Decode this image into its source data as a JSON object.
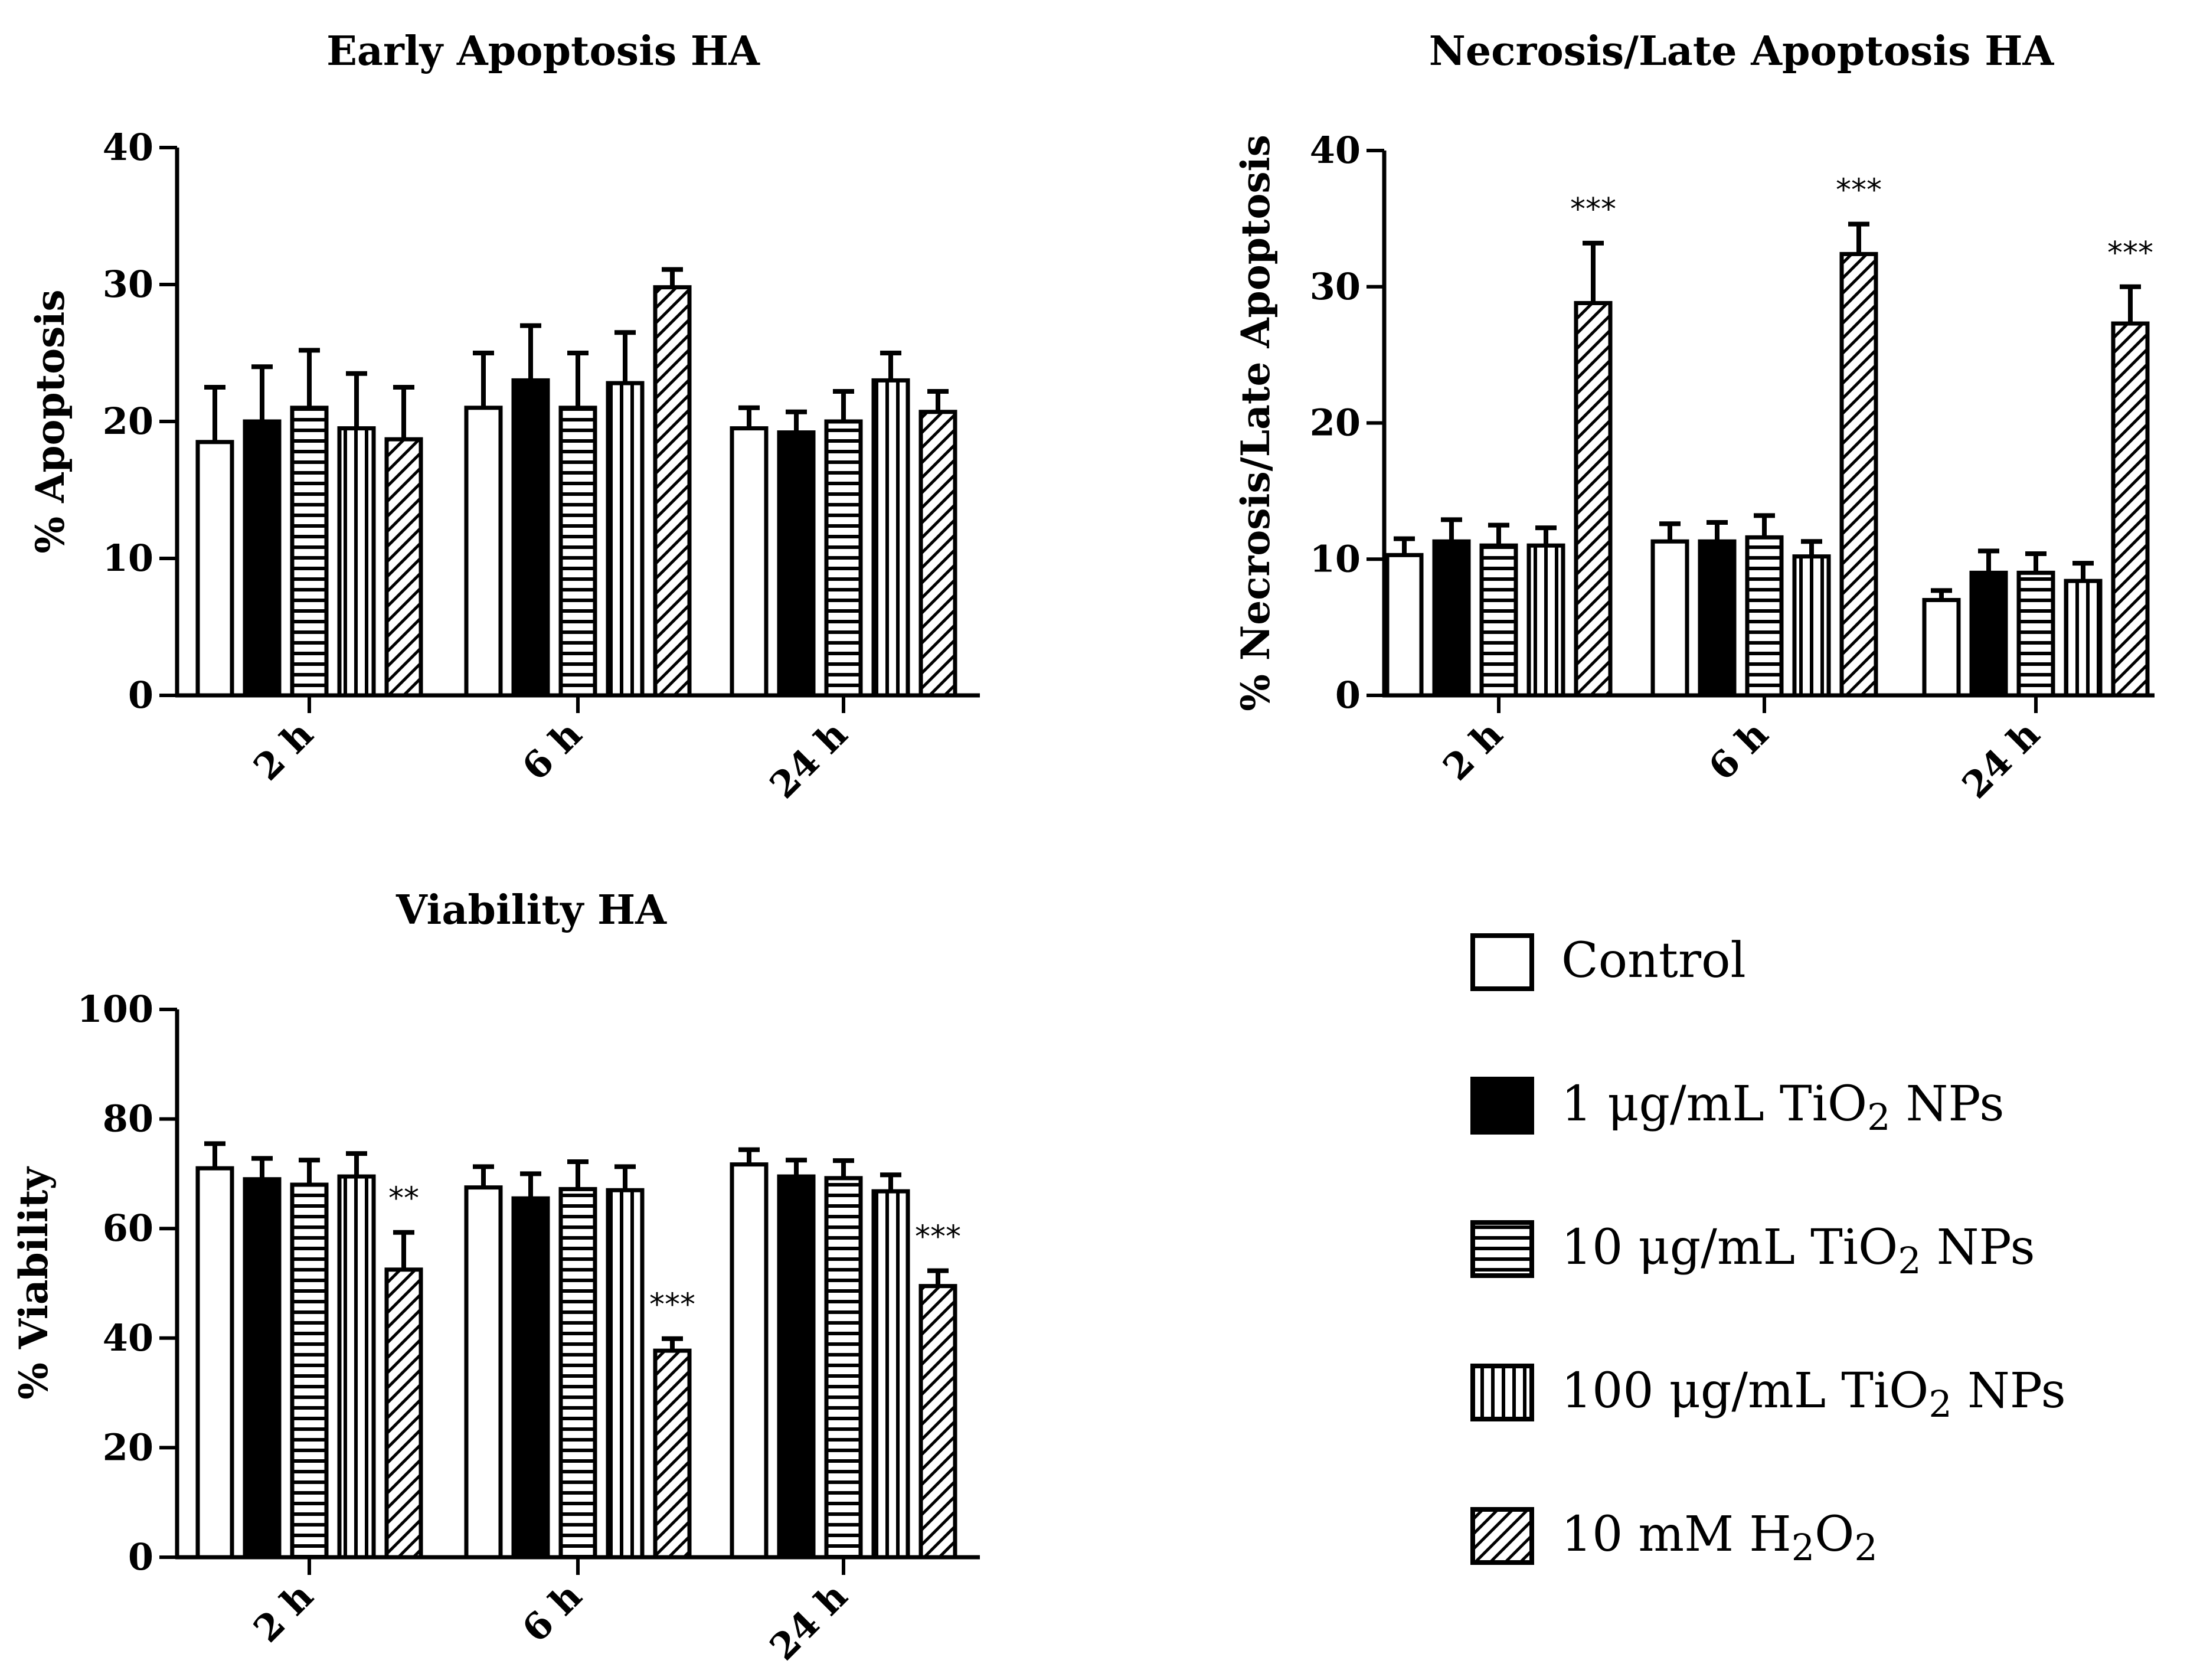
{
  "chart_data": [
    {
      "id": "early",
      "type": "bar",
      "title": "Early Apoptosis HA",
      "ylabel": "% Apoptosis",
      "xlabel": "",
      "ylim": [
        0,
        40
      ],
      "yticks": [
        0,
        10,
        20,
        30,
        40
      ],
      "categories": [
        "2 h",
        "6 h",
        "24 h"
      ],
      "series": [
        {
          "name": "Control",
          "values": [
            18.5,
            21,
            19.5
          ],
          "errors": [
            4,
            4,
            1.5
          ]
        },
        {
          "name": "1 μg/mL TiO2 NPs",
          "values": [
            20,
            23,
            19.2
          ],
          "errors": [
            4,
            4,
            1.5
          ]
        },
        {
          "name": "10 μg/mL TiO2 NPs",
          "values": [
            21,
            21,
            20
          ],
          "errors": [
            4.2,
            4,
            2.2
          ]
        },
        {
          "name": "100 μg/mL TiO2 NPs",
          "values": [
            19.5,
            22.8,
            23
          ],
          "errors": [
            4,
            3.7,
            2
          ]
        },
        {
          "name": "10 mM H2O2",
          "values": [
            18.7,
            29.8,
            20.7
          ],
          "errors": [
            3.8,
            1.3,
            1.5
          ]
        }
      ],
      "annotations": []
    },
    {
      "id": "necrosis",
      "type": "bar",
      "title": "Necrosis/Late Apoptosis HA",
      "ylabel": "% Necrosis/Late Apoptosis",
      "xlabel": "",
      "ylim": [
        0,
        40
      ],
      "yticks": [
        0,
        10,
        20,
        30,
        40
      ],
      "categories": [
        "2 h",
        "6 h",
        "24 h"
      ],
      "series": [
        {
          "name": "Control",
          "values": [
            10.3,
            11.3,
            7
          ],
          "errors": [
            1.2,
            1.3,
            0.7
          ]
        },
        {
          "name": "1 μg/mL TiO2 NPs",
          "values": [
            11.3,
            11.3,
            9
          ],
          "errors": [
            1.6,
            1.4,
            1.6
          ]
        },
        {
          "name": "10 μg/mL TiO2 NPs",
          "values": [
            11,
            11.6,
            9
          ],
          "errors": [
            1.5,
            1.6,
            1.4
          ]
        },
        {
          "name": "100 μg/mL TiO2 NPs",
          "values": [
            11,
            10.2,
            8.4
          ],
          "errors": [
            1.3,
            1.1,
            1.3
          ]
        },
        {
          "name": "10 mM H2O2",
          "values": [
            28.8,
            32.4,
            27.3
          ],
          "errors": [
            4.4,
            2.2,
            2.7
          ]
        }
      ],
      "annotations": [
        {
          "category": "2 h",
          "series": "10 mM H2O2",
          "text": "***"
        },
        {
          "category": "6 h",
          "series": "10 mM H2O2",
          "text": "***"
        },
        {
          "category": "24 h",
          "series": "10 mM H2O2",
          "text": "***"
        }
      ]
    },
    {
      "id": "viability",
      "type": "bar",
      "title": "Viability HA",
      "ylabel": "% Viability",
      "xlabel": "",
      "ylim": [
        0,
        100
      ],
      "yticks": [
        0,
        20,
        40,
        60,
        80,
        100
      ],
      "categories": [
        "2 h",
        "6 h",
        "24 h"
      ],
      "series": [
        {
          "name": "Control",
          "values": [
            71,
            67.5,
            71.7
          ],
          "errors": [
            4.5,
            3.8,
            2.7
          ]
        },
        {
          "name": "1 μg/mL TiO2 NPs",
          "values": [
            69,
            65.5,
            69.5
          ],
          "errors": [
            3.8,
            4.5,
            3
          ]
        },
        {
          "name": "10 μg/mL TiO2 NPs",
          "values": [
            68,
            67.2,
            69.2
          ],
          "errors": [
            4.5,
            5,
            3.2
          ]
        },
        {
          "name": "100 μg/mL TiO2 NPs",
          "values": [
            69.5,
            67,
            66.8
          ],
          "errors": [
            4.2,
            4.3,
            3
          ]
        },
        {
          "name": "10 mM H2O2",
          "values": [
            52.5,
            37.7,
            49.5
          ],
          "errors": [
            6.8,
            2.2,
            2.8
          ]
        }
      ],
      "annotations": [
        {
          "category": "2 h",
          "series": "10 mM H2O2",
          "text": "**"
        },
        {
          "category": "6 h",
          "series": "10 mM H2O2",
          "text": "***"
        },
        {
          "category": "24 h",
          "series": "10 mM H2O2",
          "text": "***"
        }
      ]
    }
  ],
  "legend": [
    {
      "key": "control",
      "label": "Control",
      "pattern": "white",
      "parts": [
        {
          "t": "Control"
        }
      ]
    },
    {
      "key": "tio2-1",
      "label": "1 μg/mL TiO2 NPs",
      "pattern": "black",
      "parts": [
        {
          "t": "1 μg/mL TiO"
        },
        {
          "t": "2",
          "sub": true
        },
        {
          "t": " NPs"
        }
      ]
    },
    {
      "key": "tio2-10",
      "label": "10 μg/mL TiO2 NPs",
      "pattern": "hlines",
      "parts": [
        {
          "t": "10 μg/mL TiO"
        },
        {
          "t": "2",
          "sub": true
        },
        {
          "t": " NPs"
        }
      ]
    },
    {
      "key": "tio2-100",
      "label": "100 μg/mL TiO2 NPs",
      "pattern": "vlines",
      "parts": [
        {
          "t": "100 μg/mL TiO"
        },
        {
          "t": "2",
          "sub": true
        },
        {
          "t": " NPs"
        }
      ]
    },
    {
      "key": "h2o2",
      "label": "10 mM H2O2",
      "pattern": "diag",
      "parts": [
        {
          "t": "10 mM H"
        },
        {
          "t": "2",
          "sub": true
        },
        {
          "t": "O"
        },
        {
          "t": "2",
          "sub": true
        }
      ]
    }
  ]
}
